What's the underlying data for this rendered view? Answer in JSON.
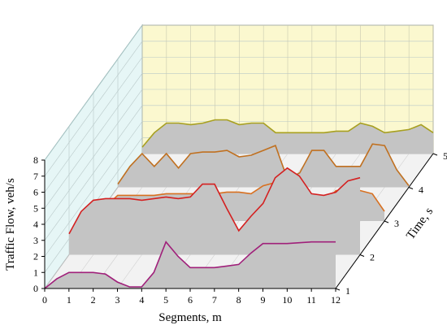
{
  "chart_data": {
    "type": "area",
    "style": "3d-waterfall",
    "xlabel": "Segments, m",
    "ylabel": "Traffic Flow, veh/s",
    "zlabel": "Time, s",
    "x_ticks": [
      "0",
      "1",
      "2",
      "3",
      "4",
      "5",
      "6",
      "7",
      "8",
      "9",
      "10",
      "11",
      "12"
    ],
    "y_ticks": [
      "0",
      "1",
      "2",
      "3",
      "4",
      "5",
      "6",
      "7",
      "8"
    ],
    "z_ticks": [
      "1",
      "2",
      "3",
      "4",
      "5"
    ],
    "xlim": [
      0,
      12
    ],
    "ylim": [
      0,
      8
    ],
    "grid": true,
    "x": [
      0,
      0.5,
      1,
      1.5,
      2,
      2.5,
      3,
      3.5,
      4,
      4.5,
      5,
      5.5,
      6,
      6.5,
      7,
      7.5,
      8,
      8.5,
      9,
      9.5,
      10,
      10.5,
      11,
      11.5,
      12
    ],
    "series": [
      {
        "time": 1,
        "color": "#a0207a",
        "values": [
          0,
          0.6,
          1,
          1,
          1,
          0.9,
          0.4,
          0.1,
          0.1,
          1,
          2.9,
          2,
          1.3,
          1.3,
          1.3,
          1.4,
          1.5,
          2.2,
          2.8,
          2.8,
          2.8,
          2.85,
          2.9,
          2.9,
          2.9
        ]
      },
      {
        "time": 2,
        "color": "#d42020",
        "values": [
          1.3,
          2.7,
          3.4,
          3.5,
          3.5,
          3.5,
          3.4,
          3.5,
          3.6,
          3.5,
          3.6,
          4.4,
          4.4,
          2.9,
          1.5,
          2.4,
          3.2,
          4.8,
          5.4,
          4.9,
          3.8,
          3.7,
          3.9,
          4.6,
          4.8
        ]
      },
      {
        "time": 3,
        "color": "#d87020",
        "values": [
          0.1,
          0.9,
          1.6,
          1.6,
          1.6,
          1.6,
          1.7,
          1.7,
          1.7,
          1.7,
          1.7,
          1.8,
          1.8,
          1.7,
          2.2,
          2.4,
          2.2,
          1.6,
          0.1,
          1.1,
          1.9,
          1.9,
          1.9,
          1.7,
          0.6
        ]
      },
      {
        "time": 4,
        "color": "#c07020",
        "values": [
          0.2,
          1.3,
          2.1,
          1.3,
          2.1,
          1.2,
          2.1,
          2.2,
          2.2,
          2.3,
          1.9,
          2,
          2.3,
          2.6,
          0.5,
          0.9,
          2.3,
          2.3,
          1.3,
          1.3,
          1.3,
          2.7,
          2.6,
          1.1,
          0.1
        ]
      },
      {
        "time": 5,
        "color": "#a8a020",
        "values": [
          0.4,
          1.3,
          1.9,
          1.9,
          1.8,
          1.9,
          2.1,
          2.1,
          1.8,
          1.9,
          1.9,
          1.3,
          1.3,
          1.3,
          1.3,
          1.3,
          1.4,
          1.4,
          1.9,
          1.7,
          1.3,
          1.4,
          1.5,
          1.8,
          1.3
        ]
      }
    ]
  }
}
